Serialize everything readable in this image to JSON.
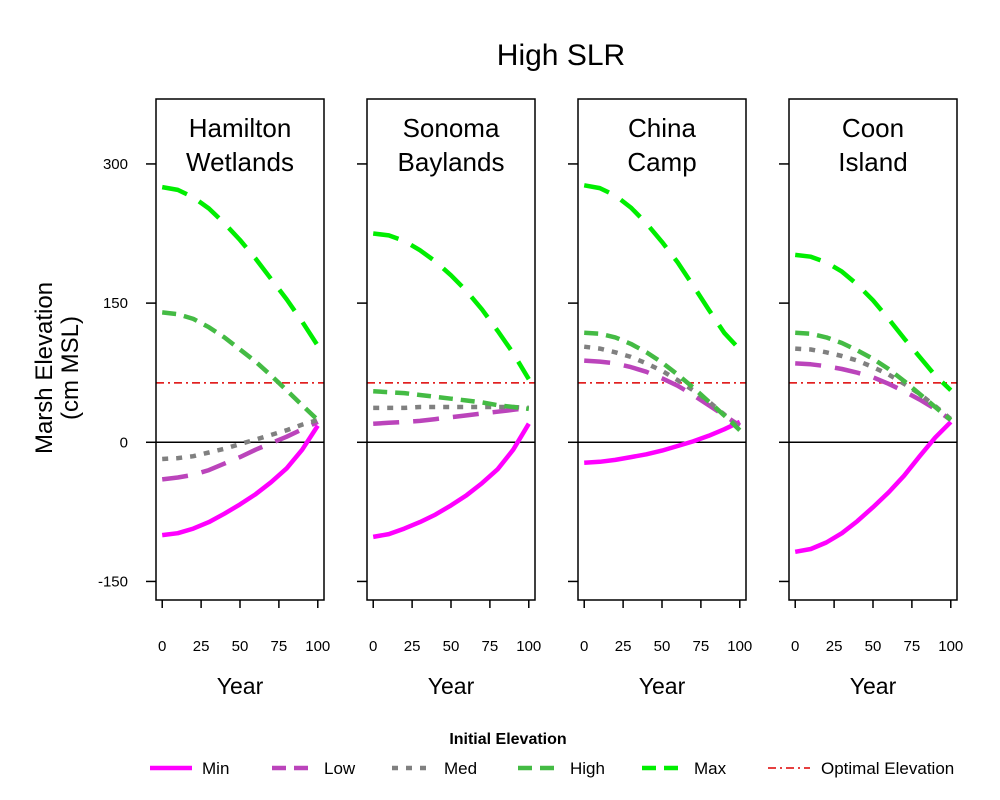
{
  "title": "High SLR",
  "ylabel_line1": "Marsh Elevation",
  "ylabel_line2": "(cm MSL)",
  "legend_title": "Initial Elevation",
  "reference_line_label": "Optimal Elevation",
  "series_styles": [
    {
      "name": "Min",
      "color": "#ff00ff",
      "dash": "solid"
    },
    {
      "name": "Low",
      "color": "#bb44bb",
      "dash": "longdash"
    },
    {
      "name": "Med",
      "color": "#808080",
      "dash": "dotted"
    },
    {
      "name": "High",
      "color": "#44bb44",
      "dash": "dashed"
    },
    {
      "name": "Max",
      "color": "#00ee00",
      "dash": "longdash"
    }
  ],
  "optimal_color": "#dd0000",
  "chart_data": [
    {
      "type": "line",
      "title_lines": [
        "Hamilton",
        "Wetlands"
      ],
      "xlabel": "Year",
      "x_ticks": [
        0,
        25,
        50,
        75,
        100
      ],
      "y_ticks": [
        -150,
        0,
        150,
        300
      ],
      "xlim": [
        -4,
        104
      ],
      "ylim": [
        -170,
        370
      ],
      "optimal_elevation": 64,
      "x": [
        0,
        10,
        20,
        30,
        40,
        50,
        60,
        70,
        80,
        90,
        100
      ],
      "series": [
        {
          "name": "Min",
          "values": [
            -100,
            -98,
            -93,
            -86,
            -77,
            -67,
            -56,
            -43,
            -28,
            -8,
            18
          ]
        },
        {
          "name": "Low",
          "values": [
            -40,
            -38,
            -35,
            -30,
            -23,
            -16,
            -8,
            -1,
            6,
            14,
            22
          ]
        },
        {
          "name": "Med",
          "values": [
            -18,
            -17,
            -15,
            -11,
            -7,
            -2,
            3,
            8,
            13,
            19,
            24
          ]
        },
        {
          "name": "High",
          "values": [
            140,
            138,
            133,
            124,
            113,
            100,
            87,
            72,
            56,
            40,
            24
          ]
        },
        {
          "name": "Max",
          "values": [
            275,
            272,
            264,
            252,
            236,
            218,
            198,
            176,
            154,
            130,
            104
          ]
        }
      ]
    },
    {
      "type": "line",
      "title_lines": [
        "Sonoma",
        "Baylands"
      ],
      "xlabel": "Year",
      "x_ticks": [
        0,
        25,
        50,
        75,
        100
      ],
      "y_ticks": [
        -150,
        0,
        150,
        300
      ],
      "xlim": [
        -4,
        104
      ],
      "ylim": [
        -170,
        370
      ],
      "optimal_elevation": 64,
      "x": [
        0,
        10,
        20,
        30,
        40,
        50,
        60,
        70,
        80,
        90,
        100
      ],
      "series": [
        {
          "name": "Min",
          "values": [
            -102,
            -99,
            -93,
            -86,
            -78,
            -68,
            -57,
            -44,
            -29,
            -8,
            20
          ]
        },
        {
          "name": "Low",
          "values": [
            20,
            21,
            22,
            23,
            25,
            27,
            29,
            31,
            33,
            35,
            37
          ]
        },
        {
          "name": "Med",
          "values": [
            37,
            37,
            37,
            38,
            38,
            38,
            38,
            38,
            38,
            38,
            37
          ]
        },
        {
          "name": "High",
          "values": [
            55,
            54,
            53,
            51,
            49,
            47,
            45,
            43,
            40,
            38,
            36
          ]
        },
        {
          "name": "Max",
          "values": [
            225,
            223,
            217,
            207,
            195,
            180,
            163,
            143,
            120,
            96,
            68
          ]
        }
      ]
    },
    {
      "type": "line",
      "title_lines": [
        "China",
        "Camp"
      ],
      "xlabel": "Year",
      "x_ticks": [
        0,
        25,
        50,
        75,
        100
      ],
      "y_ticks": [
        -150,
        0,
        150,
        300
      ],
      "xlim": [
        -4,
        104
      ],
      "ylim": [
        -170,
        370
      ],
      "optimal_elevation": 64,
      "x": [
        0,
        10,
        20,
        30,
        40,
        50,
        60,
        70,
        80,
        90,
        100
      ],
      "series": [
        {
          "name": "Min",
          "values": [
            -22,
            -21,
            -19,
            -16,
            -13,
            -9,
            -4,
            1,
            7,
            14,
            22
          ]
        },
        {
          "name": "Low",
          "values": [
            88,
            87,
            85,
            81,
            76,
            69,
            61,
            51,
            40,
            29,
            18
          ]
        },
        {
          "name": "Med",
          "values": [
            103,
            101,
            97,
            92,
            85,
            77,
            67,
            56,
            44,
            30,
            15
          ]
        },
        {
          "name": "High",
          "values": [
            118,
            117,
            113,
            106,
            97,
            86,
            73,
            59,
            44,
            29,
            13
          ]
        },
        {
          "name": "Max",
          "values": [
            277,
            274,
            266,
            253,
            236,
            216,
            194,
            169,
            143,
            118,
            100
          ]
        }
      ]
    },
    {
      "type": "line",
      "title_lines": [
        "Coon",
        "Island"
      ],
      "xlabel": "Year",
      "x_ticks": [
        0,
        25,
        50,
        75,
        100
      ],
      "y_ticks": [
        -150,
        0,
        150,
        300
      ],
      "xlim": [
        -4,
        104
      ],
      "ylim": [
        -170,
        370
      ],
      "optimal_elevation": 64,
      "x": [
        0,
        10,
        20,
        30,
        40,
        50,
        60,
        70,
        80,
        90,
        100
      ],
      "series": [
        {
          "name": "Min",
          "values": [
            -118,
            -115,
            -108,
            -98,
            -85,
            -70,
            -54,
            -36,
            -15,
            5,
            22
          ]
        },
        {
          "name": "Low",
          "values": [
            85,
            84,
            82,
            79,
            75,
            70,
            63,
            55,
            46,
            36,
            24
          ]
        },
        {
          "name": "Med",
          "values": [
            101,
            100,
            97,
            93,
            88,
            81,
            73,
            63,
            52,
            39,
            25
          ]
        },
        {
          "name": "High",
          "values": [
            118,
            117,
            113,
            107,
            99,
            90,
            79,
            66,
            52,
            38,
            24
          ]
        },
        {
          "name": "Max",
          "values": [
            202,
            200,
            194,
            184,
            170,
            153,
            133,
            112,
            92,
            72,
            56
          ]
        }
      ]
    }
  ]
}
